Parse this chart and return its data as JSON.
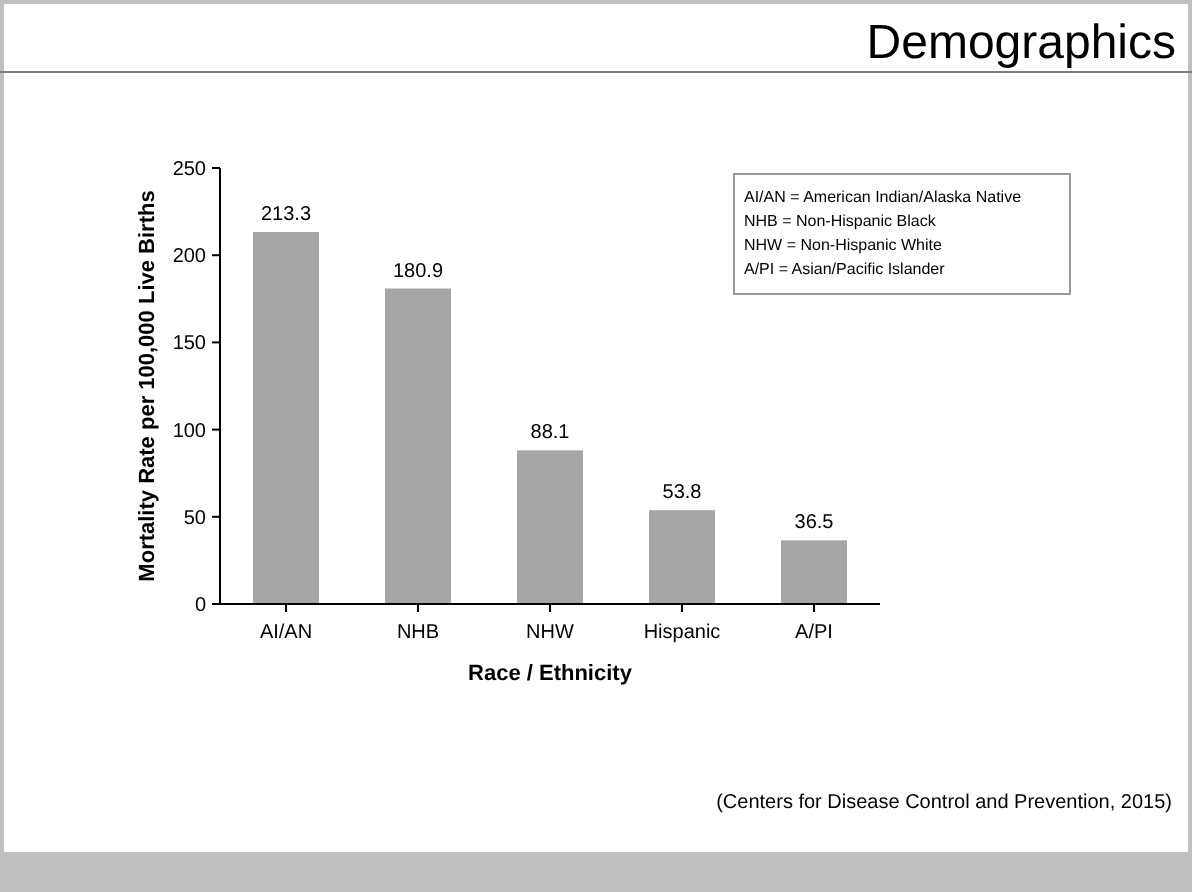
{
  "chart_data": {
    "type": "bar",
    "title": "Demographics",
    "xlabel": "Race / Ethnicity",
    "ylabel": "Mortality Rate per 100,000 Live Births",
    "categories": [
      "AI/AN",
      "NHB",
      "NHW",
      "Hispanic",
      "A/PI"
    ],
    "values": [
      213.3,
      180.9,
      88.1,
      53.8,
      36.5
    ],
    "color": "#a6a6a6",
    "data_labels": true,
    "ylim": [
      0,
      250
    ],
    "yticks": [
      0,
      50,
      100,
      150,
      200,
      250
    ],
    "annotations": [
      "AI/AN = American Indian/Alaska Native",
      "NHB = Non-Hispanic Black",
      "NHW = Non-Hispanic White",
      "A/PI = Asian/Pacific Islander",
      "(Centers for Disease Control and Prevention, 2015)"
    ]
  }
}
